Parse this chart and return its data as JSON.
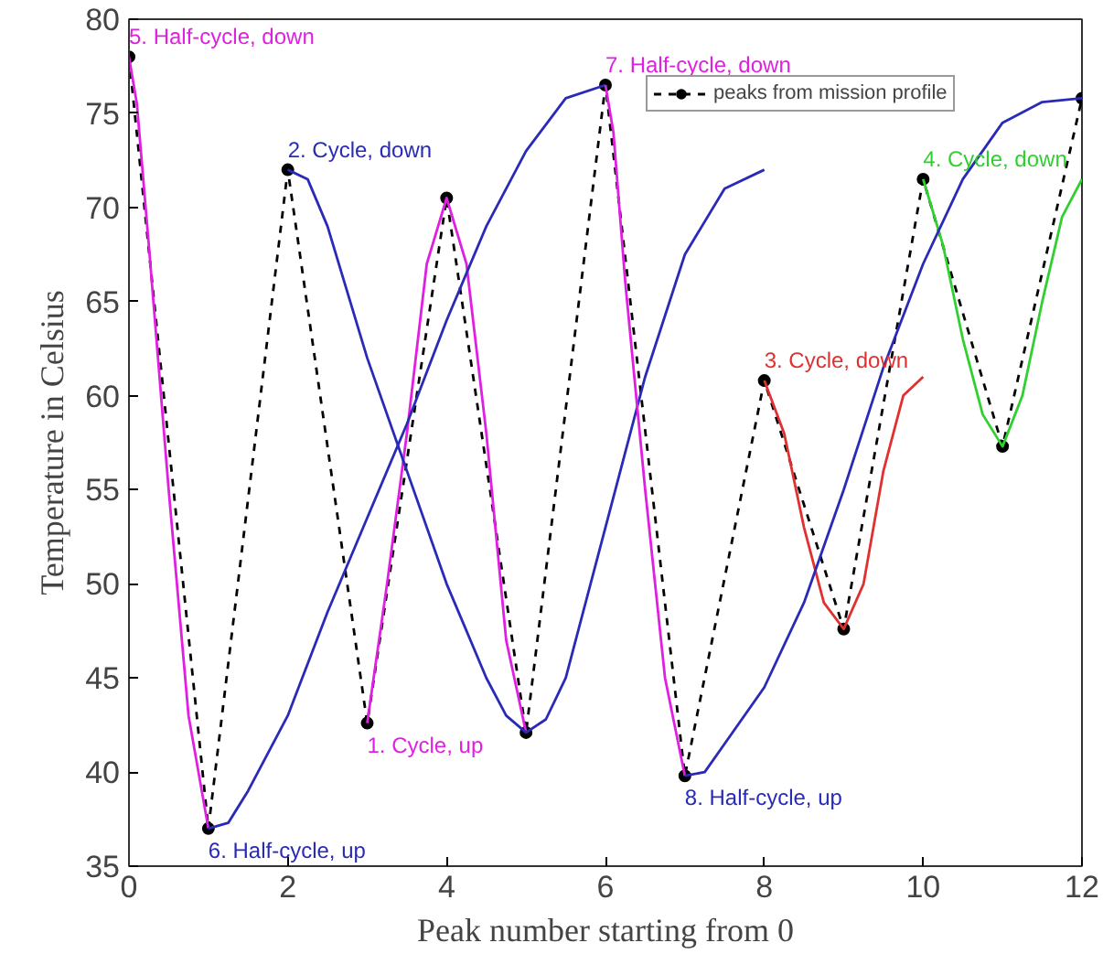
{
  "chart_data": {
    "type": "line",
    "xlabel": "Peak number starting from 0",
    "ylabel": "Temperature in Celsius",
    "xlim": [
      0,
      12
    ],
    "ylim": [
      35,
      80
    ],
    "xticks": [
      0,
      2,
      4,
      6,
      8,
      10,
      12
    ],
    "yticks": [
      35,
      40,
      45,
      50,
      55,
      60,
      65,
      70,
      75,
      80
    ],
    "grid": false,
    "legend": "top right",
    "series": [
      {
        "name": "peaks from mission profile",
        "color": "#000000",
        "marker": "circle",
        "line_style": "dashed",
        "x": [
          0,
          1,
          2,
          3,
          4,
          5,
          6,
          7,
          8,
          9,
          10,
          11,
          12
        ],
        "values": [
          78,
          37,
          72,
          42.6,
          70.5,
          42.1,
          76.5,
          39.8,
          60.8,
          47.6,
          71.5,
          57.3,
          75.8
        ]
      },
      {
        "name": "1. Cycle, up",
        "color": "#e020e0",
        "x": [
          3,
          3.25,
          3.5,
          3.75,
          4,
          4.25,
          4.5,
          4.75,
          5
        ],
        "values": [
          42.6,
          50,
          58,
          67,
          70.5,
          67,
          58,
          47,
          42.1
        ]
      },
      {
        "name": "2. Cycle, down",
        "color": "#2a2ab8",
        "x": [
          2,
          2.25,
          2.5,
          3,
          3.5,
          4,
          4.5,
          4.75,
          5,
          5.25,
          5.5,
          6,
          6.5,
          7,
          7.5,
          8
        ],
        "values": [
          72,
          71.5,
          69,
          62,
          56,
          50,
          45,
          43,
          42.1,
          42.8,
          45,
          53,
          61,
          67.5,
          71,
          72
        ]
      },
      {
        "name": "3. Cycle, down",
        "color": "#e03030",
        "x": [
          8,
          8.25,
          8.5,
          8.75,
          9,
          9.25,
          9.5,
          9.75,
          10
        ],
        "values": [
          60.8,
          58,
          53,
          49,
          47.6,
          50,
          56,
          60,
          61
        ]
      },
      {
        "name": "4. Cycle, down",
        "color": "#30d030",
        "x": [
          10,
          10.25,
          10.5,
          10.75,
          11,
          11.25,
          11.5,
          11.75,
          12
        ],
        "values": [
          71.5,
          68,
          63,
          59,
          57.3,
          60,
          65,
          69.5,
          71.5
        ]
      },
      {
        "name": "5. Half-cycle, down",
        "color": "#e020e0",
        "x": [
          0,
          0.1,
          0.25,
          0.5,
          0.75,
          1
        ],
        "values": [
          78,
          75.5,
          68,
          55,
          43,
          37
        ]
      },
      {
        "name": "6. Half-cycle, up",
        "color": "#2a2ab8",
        "x": [
          1,
          1.25,
          1.5,
          2,
          2.5,
          3,
          3.5,
          4,
          4.5,
          5,
          5.5,
          6
        ],
        "values": [
          37,
          37.3,
          39,
          43,
          48.5,
          53.5,
          58.5,
          64,
          69,
          73,
          75.8,
          76.5
        ]
      },
      {
        "name": "7. Half-cycle, down",
        "color": "#e020e0",
        "x": [
          6,
          6.1,
          6.25,
          6.5,
          6.75,
          7
        ],
        "values": [
          76.5,
          74,
          66,
          55,
          45,
          39.8
        ]
      },
      {
        "name": "8. Half-cycle, up",
        "color": "#2a2ab8",
        "x": [
          7,
          7.25,
          7.5,
          8,
          8.5,
          9,
          9.5,
          10,
          10.5,
          11,
          11.5,
          12
        ],
        "values": [
          39.8,
          40,
          41.5,
          44.5,
          49,
          55,
          61.5,
          67,
          71.5,
          74.5,
          75.6,
          75.8
        ]
      }
    ]
  }
}
